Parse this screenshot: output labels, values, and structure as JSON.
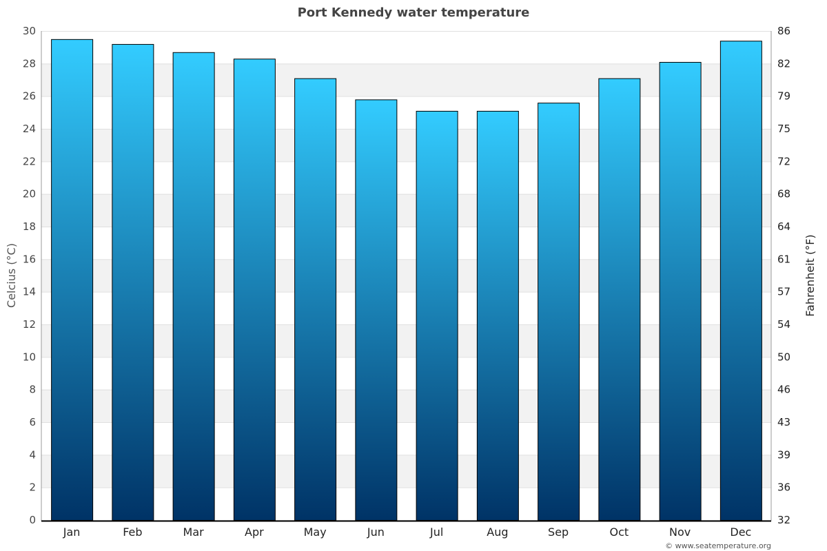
{
  "chart_data": {
    "type": "bar",
    "title": "Port Kennedy water temperature",
    "categories": [
      "Jan",
      "Feb",
      "Mar",
      "Apr",
      "May",
      "Jun",
      "Jul",
      "Aug",
      "Sep",
      "Oct",
      "Nov",
      "Dec"
    ],
    "values": [
      29.5,
      29.2,
      28.7,
      28.3,
      27.1,
      25.8,
      25.1,
      25.1,
      25.6,
      27.1,
      28.1,
      29.4
    ],
    "ylabel": "Celcius (°C)",
    "ylabel_right": "Fahrenheit (°F)",
    "ylim": [
      0,
      30
    ],
    "yticks": [
      0,
      2,
      4,
      6,
      8,
      10,
      12,
      14,
      16,
      18,
      20,
      22,
      24,
      26,
      28,
      30
    ],
    "yticks_right": [
      "32",
      "36",
      "39",
      "43",
      "46",
      "50",
      "54",
      "57",
      "61",
      "64",
      "68",
      "72",
      "75",
      "79",
      "82",
      "86"
    ],
    "grid": true,
    "colors": {
      "bar_top": "#33ccff",
      "bar_bottom": "#003366",
      "band": "#f2f2f2"
    }
  },
  "credit": "© www.seatemperature.org"
}
